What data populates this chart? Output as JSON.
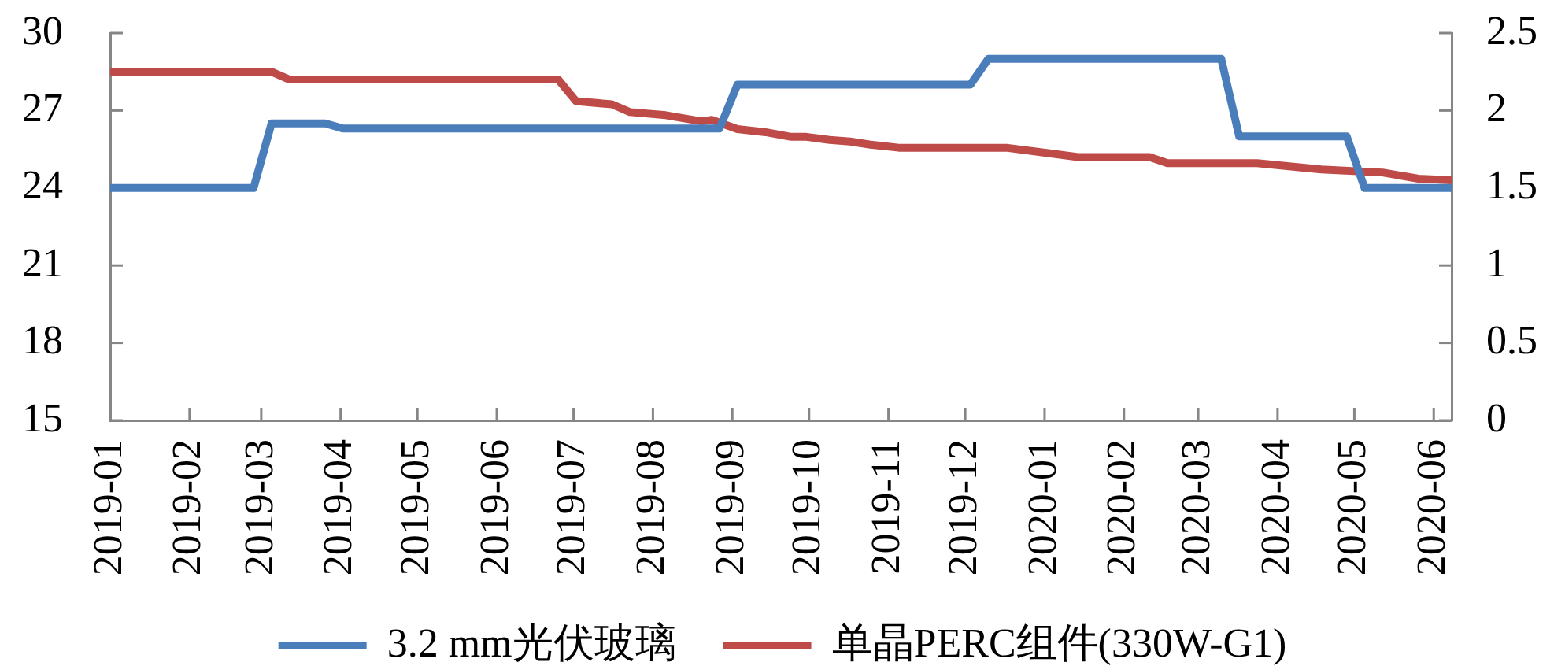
{
  "chart_data": {
    "type": "line",
    "xlim": [
      "2019-01-01",
      "2020-06-08"
    ],
    "xticks": [
      "2019-01",
      "2019-02",
      "2019-03",
      "2019-04",
      "2019-05",
      "2019-06",
      "2019-07",
      "2019-08",
      "2019-09",
      "2019-10",
      "2019-11",
      "2019-12",
      "2020-01",
      "2020-02",
      "2020-03",
      "2020-04",
      "2020-05",
      "2020-06"
    ],
    "ylim": [
      15,
      30
    ],
    "yticks": [
      15,
      18,
      21,
      24,
      27,
      30
    ],
    "y2lim": [
      0,
      2.5
    ],
    "y2ticks": [
      0,
      0.5,
      1,
      1.5,
      2,
      2.5
    ],
    "legend": "bottom",
    "grid": false,
    "marker": "none",
    "series": [
      {
        "name": "3.2 mm光伏玻璃",
        "color": "#4a7ebb",
        "x": [
          "2019-01-01",
          "2019-02-26",
          "2019-03-05",
          "2019-03-26",
          "2019-04-02",
          "2019-08-27",
          "2019-09-03",
          "2019-12-03",
          "2019-12-10",
          "2020-03-10",
          "2020-03-17",
          "2020-04-28",
          "2020-05-05",
          "2020-06-08"
        ],
        "values": [
          24,
          24,
          26.5,
          26.5,
          26.3,
          26.3,
          28,
          28,
          29,
          29,
          26,
          26,
          24,
          24
        ]
      },
      {
        "name": "单晶PERC组件(330W-G1)",
        "color": "#be4b48",
        "axis": "y2",
        "x": [
          "2019-01-01",
          "2019-03-05",
          "2019-03-12",
          "2019-06-25",
          "2019-07-02",
          "2019-07-16",
          "2019-07-23",
          "2019-08-06",
          "2019-08-20",
          "2019-08-24",
          "2019-09-03",
          "2019-09-14",
          "2019-09-24",
          "2019-09-30",
          "2019-10-09",
          "2019-10-17",
          "2019-10-25",
          "2019-11-05",
          "2019-12-17",
          "2019-12-31",
          "2020-01-14",
          "2020-02-11",
          "2020-02-18",
          "2020-03-24",
          "2020-04-18",
          "2020-05-12",
          "2020-05-26",
          "2020-06-08"
        ],
        "values": [
          2.25,
          2.25,
          2.2,
          2.2,
          2.06,
          2.04,
          1.99,
          1.97,
          1.93,
          1.94,
          1.88,
          1.86,
          1.83,
          1.83,
          1.81,
          1.8,
          1.78,
          1.76,
          1.76,
          1.73,
          1.7,
          1.7,
          1.66,
          1.66,
          1.62,
          1.6,
          1.56,
          1.55
        ]
      }
    ]
  }
}
